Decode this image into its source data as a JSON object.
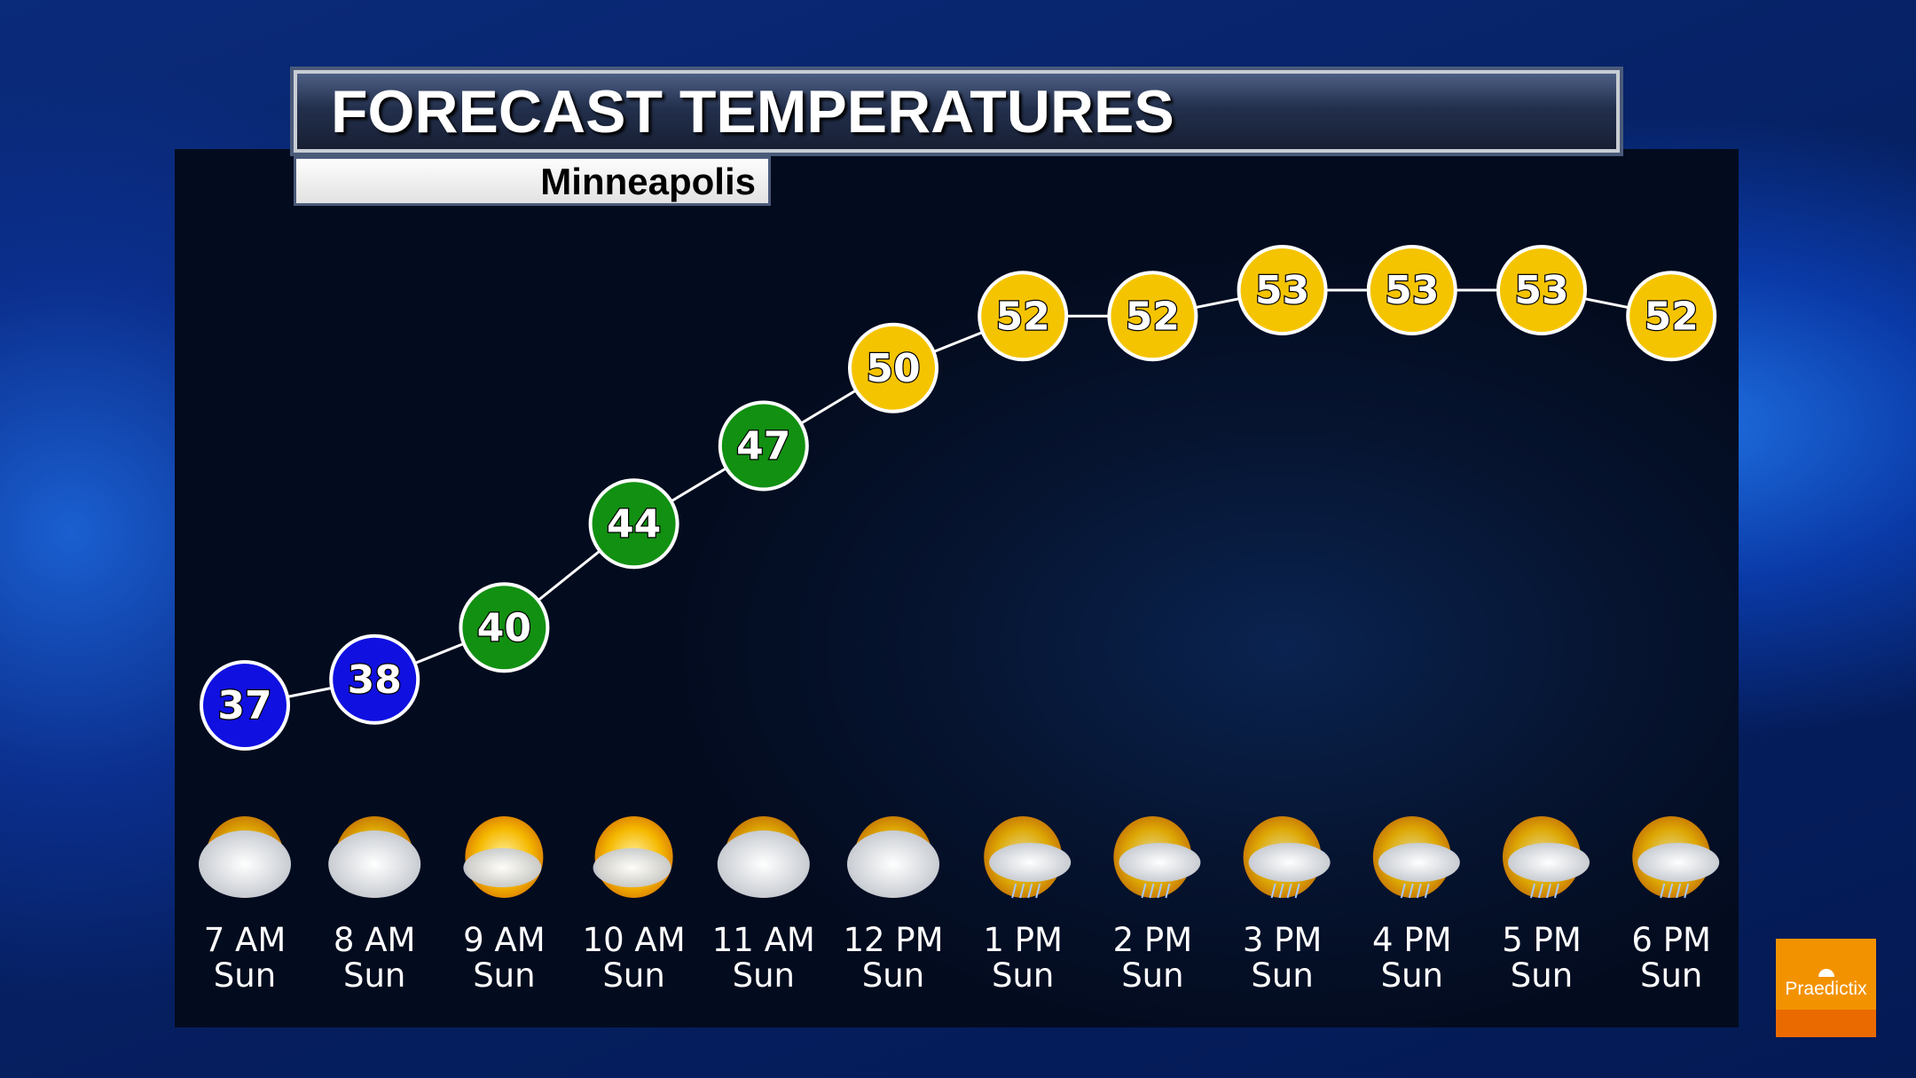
{
  "title": "FORECAST TEMPERATURES",
  "location": "Minneapolis",
  "logo": "Praedictix",
  "colors": {
    "cold": "#1010e0",
    "mild": "#129012",
    "warm": "#f5c400",
    "line": "#ffffff"
  },
  "chart_data": {
    "type": "line",
    "categories": [
      "7 AM",
      "8 AM",
      "9 AM",
      "10 AM",
      "11 AM",
      "12 PM",
      "1 PM",
      "2 PM",
      "3 PM",
      "4 PM",
      "5 PM",
      "6 PM"
    ],
    "days": [
      "Sun",
      "Sun",
      "Sun",
      "Sun",
      "Sun",
      "Sun",
      "Sun",
      "Sun",
      "Sun",
      "Sun",
      "Sun",
      "Sun"
    ],
    "values": [
      37,
      38,
      40,
      44,
      47,
      50,
      52,
      52,
      53,
      53,
      53,
      52
    ],
    "marker_colors": [
      "blue",
      "blue",
      "green",
      "green",
      "green",
      "yellow",
      "yellow",
      "yellow",
      "yellow",
      "yellow",
      "yellow",
      "yellow"
    ],
    "icons": [
      "mostly-cloudy-icon",
      "mostly-cloudy-icon",
      "partly-sunny-icon",
      "partly-sunny-icon",
      "mostly-cloudy-icon",
      "mostly-cloudy-icon",
      "rain-showers-icon",
      "rain-showers-icon",
      "rain-showers-icon",
      "rain-showers-icon",
      "rain-showers-icon",
      "rain-showers-icon"
    ],
    "grid": false
  }
}
